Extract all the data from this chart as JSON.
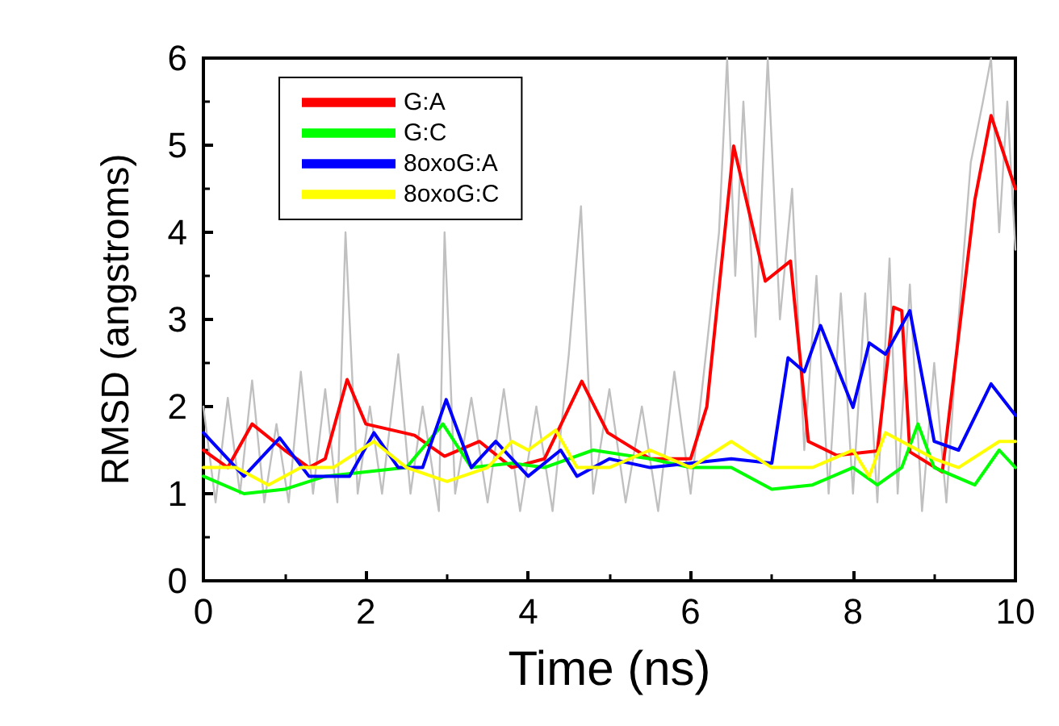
{
  "chart_data": {
    "type": "line",
    "xlabel": "Time (ns)",
    "ylabel": "RMSD (angstroms)",
    "xlim": [
      0,
      10
    ],
    "xticks": [
      0,
      2,
      4,
      6,
      8,
      10
    ],
    "ylim": [
      0,
      6
    ],
    "yticks": [
      0,
      1,
      2,
      3,
      4,
      5,
      6
    ],
    "grid": false,
    "legend": "top left",
    "marker": "none",
    "line_style": "solid",
    "series": [
      {
        "color": "#c0c0c0",
        "x": [
          0,
          0.15,
          0.3,
          0.45,
          0.6,
          0.75,
          0.9,
          1.05,
          1.2,
          1.35,
          1.5,
          1.65,
          1.75,
          1.9,
          2.05,
          2.2,
          2.4,
          2.55,
          2.7,
          2.9,
          2.97,
          3.1,
          3.3,
          3.5,
          3.7,
          3.9,
          4.1,
          4.3,
          4.5,
          4.65,
          4.8,
          5.0,
          5.2,
          5.4,
          5.6,
          5.8,
          6.0,
          6.2,
          6.35,
          6.45,
          6.55,
          6.65,
          6.8,
          6.95,
          7.1,
          7.25,
          7.4,
          7.55,
          7.7,
          7.85,
          8.0,
          8.15,
          8.3,
          8.45,
          8.55,
          8.7,
          8.85,
          9.0,
          9.15,
          9.3,
          9.45,
          9.6,
          9.7,
          9.8,
          9.9,
          10
        ],
        "values": [
          2.0,
          0.9,
          2.1,
          1.0,
          2.3,
          0.9,
          1.8,
          0.9,
          2.4,
          1.0,
          2.2,
          0.9,
          4.0,
          1.0,
          2.0,
          1.0,
          2.6,
          1.0,
          2.0,
          0.8,
          4.0,
          1.0,
          2.1,
          0.9,
          2.2,
          0.8,
          2.0,
          0.8,
          2.6,
          4.3,
          1.0,
          2.2,
          0.9,
          2.0,
          0.8,
          2.4,
          1.0,
          2.7,
          4.0,
          6.0,
          3.5,
          5.5,
          2.8,
          6.0,
          3.0,
          4.5,
          1.5,
          3.5,
          1.0,
          3.3,
          1.0,
          3.3,
          0.9,
          3.7,
          1.0,
          3.4,
          0.8,
          2.5,
          0.9,
          3.0,
          4.8,
          5.5,
          6.0,
          4.0,
          5.5,
          3.8
        ]
      },
      {
        "name": "G:A",
        "color": "#ff0000",
        "x": [
          0,
          0.3,
          0.6,
          1.0,
          1.3,
          1.5,
          1.77,
          2.0,
          2.6,
          2.97,
          3.4,
          3.8,
          4.2,
          4.66,
          4.98,
          5.5,
          6.0,
          6.2,
          6.53,
          6.92,
          7.23,
          7.45,
          7.8,
          8.3,
          8.5,
          8.6,
          8.7,
          9.1,
          9.5,
          9.7,
          10
        ],
        "values": [
          1.5,
          1.3,
          1.8,
          1.5,
          1.3,
          1.4,
          2.31,
          1.8,
          1.67,
          1.43,
          1.6,
          1.3,
          1.4,
          2.29,
          1.7,
          1.4,
          1.4,
          2.0,
          4.99,
          3.44,
          3.67,
          1.6,
          1.44,
          1.49,
          3.14,
          3.1,
          1.48,
          1.25,
          4.37,
          5.34,
          4.5
        ]
      },
      {
        "name": "G:C",
        "color": "#00ff00",
        "x": [
          0,
          0.5,
          1.0,
          1.5,
          2.0,
          2.5,
          2.95,
          3.3,
          3.8,
          4.2,
          4.8,
          5.5,
          6.0,
          6.5,
          7.0,
          7.5,
          8.0,
          8.3,
          8.6,
          8.8,
          9.0,
          9.5,
          9.8,
          10
        ],
        "values": [
          1.2,
          1.0,
          1.05,
          1.2,
          1.25,
          1.3,
          1.8,
          1.3,
          1.35,
          1.3,
          1.5,
          1.4,
          1.3,
          1.3,
          1.05,
          1.1,
          1.3,
          1.1,
          1.3,
          1.8,
          1.3,
          1.1,
          1.5,
          1.3
        ]
      },
      {
        "name": "8oxoG:A",
        "color": "#0000ff",
        "x": [
          0,
          0.5,
          0.94,
          1.3,
          1.8,
          2.1,
          2.4,
          2.7,
          2.99,
          3.3,
          3.6,
          4.0,
          4.4,
          4.6,
          5.0,
          5.5,
          6.0,
          6.5,
          7.0,
          7.2,
          7.4,
          7.6,
          8.0,
          8.2,
          8.4,
          8.7,
          9.0,
          9.3,
          9.7,
          10
        ],
        "values": [
          1.7,
          1.2,
          1.64,
          1.2,
          1.2,
          1.7,
          1.3,
          1.3,
          2.08,
          1.3,
          1.6,
          1.2,
          1.5,
          1.2,
          1.4,
          1.3,
          1.35,
          1.4,
          1.35,
          2.56,
          2.4,
          2.93,
          1.99,
          2.73,
          2.6,
          3.1,
          1.6,
          1.5,
          2.26,
          1.9
        ]
      },
      {
        "name": "8oxoG:C",
        "color": "#ffff00",
        "x": [
          0,
          0.4,
          0.8,
          1.2,
          1.6,
          2.1,
          2.5,
          3.0,
          3.5,
          3.8,
          4.0,
          4.34,
          4.6,
          5.0,
          5.5,
          6.0,
          6.5,
          7.0,
          7.5,
          8.0,
          8.2,
          8.4,
          9.0,
          9.3,
          9.8,
          10
        ],
        "values": [
          1.3,
          1.3,
          1.1,
          1.3,
          1.3,
          1.6,
          1.3,
          1.14,
          1.3,
          1.6,
          1.5,
          1.73,
          1.3,
          1.3,
          1.5,
          1.3,
          1.6,
          1.3,
          1.3,
          1.5,
          1.2,
          1.7,
          1.4,
          1.3,
          1.6,
          1.6
        ]
      }
    ]
  }
}
